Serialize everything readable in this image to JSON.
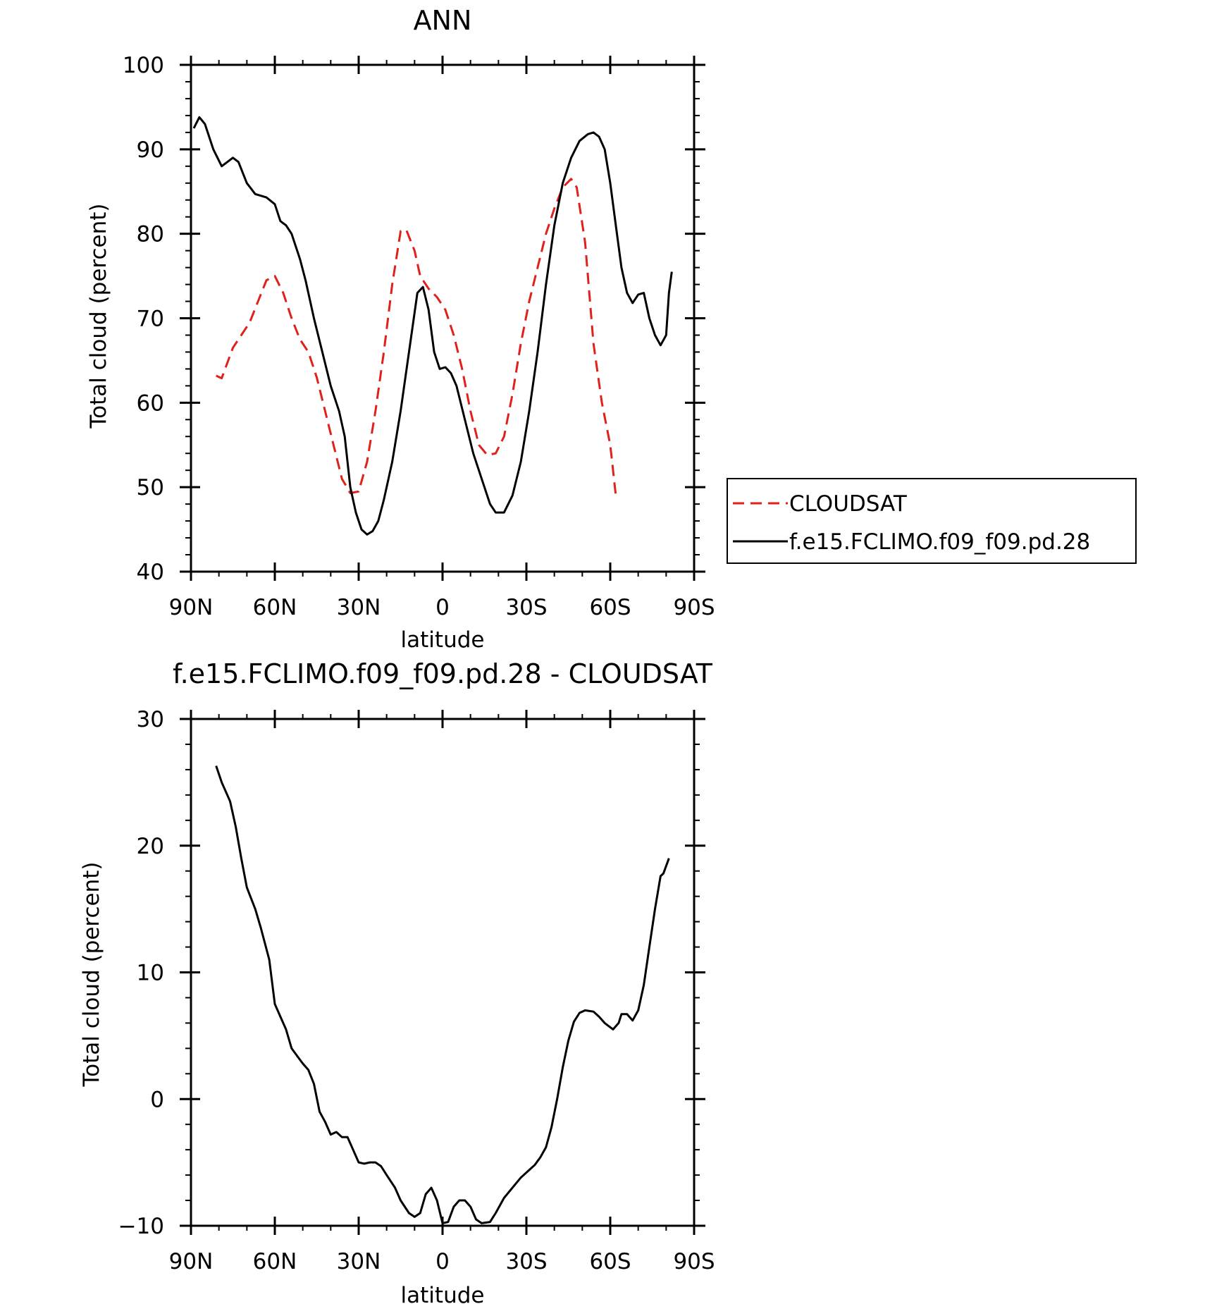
{
  "chart_data": [
    {
      "type": "line",
      "title": "ANN",
      "xlabel": "latitude",
      "ylabel": "Total cloud (percent)",
      "xlim": [
        90,
        -90
      ],
      "ylim": [
        40,
        100
      ],
      "x_ticks": [
        90,
        60,
        30,
        0,
        -30,
        -60,
        -90
      ],
      "x_tick_labels": [
        "90N",
        "60N",
        "30N",
        "0",
        "30S",
        "60S",
        "90S"
      ],
      "y_ticks": [
        40,
        50,
        60,
        70,
        80,
        90,
        100
      ],
      "y_tick_labels": [
        "40",
        "50",
        "60",
        "70",
        "80",
        "90",
        "100"
      ],
      "grid": false,
      "legend_position": "right",
      "series": [
        {
          "name": "CLOUDSAT",
          "color": "#e0201b",
          "dash": "dashed",
          "points": [
            [
              81,
              63.2
            ],
            [
              79,
              62.9
            ],
            [
              75,
              66.5
            ],
            [
              72,
              68
            ],
            [
              69,
              69.5
            ],
            [
              66,
              72
            ],
            [
              63,
              74.5
            ],
            [
              60,
              75
            ],
            [
              57,
              73
            ],
            [
              54,
              70
            ],
            [
              51,
              67.5
            ],
            [
              48,
              66
            ],
            [
              45,
              63
            ],
            [
              42,
              59
            ],
            [
              39,
              55
            ],
            [
              36,
              51
            ],
            [
              33,
              49.3
            ],
            [
              30,
              49.5
            ],
            [
              27,
              53
            ],
            [
              24,
              59
            ],
            [
              21,
              66
            ],
            [
              18,
              74
            ],
            [
              15,
              80.3
            ],
            [
              13,
              80.5
            ],
            [
              10,
              78
            ],
            [
              8,
              75
            ],
            [
              5,
              73.5
            ],
            [
              2,
              72.5
            ],
            [
              -1,
              71
            ],
            [
              -4,
              68
            ],
            [
              -7,
              64
            ],
            [
              -10,
              59
            ],
            [
              -13,
              55
            ],
            [
              -16,
              53.8
            ],
            [
              -19,
              54
            ],
            [
              -22,
              56
            ],
            [
              -25,
              61
            ],
            [
              -28,
              67
            ],
            [
              -31,
              72
            ],
            [
              -34,
              76
            ],
            [
              -37,
              80
            ],
            [
              -40,
              83
            ],
            [
              -43,
              85.5
            ],
            [
              -46,
              86.5
            ],
            [
              -48,
              85.5
            ],
            [
              -51,
              79
            ],
            [
              -54,
              67
            ],
            [
              -57,
              60
            ],
            [
              -60,
              55
            ],
            [
              -62,
              49
            ]
          ]
        },
        {
          "name": "f.e15.FCLIMO.f09_f09.pd.28",
          "color": "#000000",
          "dash": "solid",
          "points": [
            [
              89,
              92.5
            ],
            [
              87,
              93.8
            ],
            [
              85,
              93
            ],
            [
              82,
              90
            ],
            [
              79,
              88
            ],
            [
              77,
              88.5
            ],
            [
              75,
              89
            ],
            [
              73,
              88.5
            ],
            [
              70,
              86
            ],
            [
              67,
              84.7
            ],
            [
              63,
              84.3
            ],
            [
              60,
              83.5
            ],
            [
              58,
              81.5
            ],
            [
              56,
              81
            ],
            [
              54,
              80
            ],
            [
              51,
              77
            ],
            [
              49,
              74.5
            ],
            [
              46,
              70
            ],
            [
              43,
              66
            ],
            [
              40,
              62
            ],
            [
              37,
              59
            ],
            [
              35,
              56
            ],
            [
              33,
              50
            ],
            [
              31,
              47
            ],
            [
              29,
              45
            ],
            [
              27,
              44.4
            ],
            [
              25,
              44.8
            ],
            [
              23,
              46
            ],
            [
              21,
              48.5
            ],
            [
              18,
              53
            ],
            [
              15,
              59
            ],
            [
              12,
              66
            ],
            [
              9,
              73
            ],
            [
              7,
              73.7
            ],
            [
              5,
              71
            ],
            [
              3,
              66
            ],
            [
              1,
              64
            ],
            [
              -1,
              64.2
            ],
            [
              -3,
              63.5
            ],
            [
              -5,
              62
            ],
            [
              -8,
              58
            ],
            [
              -11,
              54
            ],
            [
              -14,
              51
            ],
            [
              -17,
              48
            ],
            [
              -19,
              47
            ],
            [
              -22,
              47
            ],
            [
              -25,
              49
            ],
            [
              -28,
              53
            ],
            [
              -31,
              59
            ],
            [
              -34,
              66
            ],
            [
              -37,
              74
            ],
            [
              -40,
              81
            ],
            [
              -43,
              86
            ],
            [
              -46,
              89
            ],
            [
              -49,
              91
            ],
            [
              -52,
              91.8
            ],
            [
              -54,
              92
            ],
            [
              -56,
              91.5
            ],
            [
              -58,
              90
            ],
            [
              -60,
              86
            ],
            [
              -62,
              81
            ],
            [
              -64,
              76
            ],
            [
              -66,
              73
            ],
            [
              -68,
              71.8
            ],
            [
              -70,
              72.8
            ],
            [
              -72,
              73
            ],
            [
              -74,
              70
            ],
            [
              -76,
              68
            ],
            [
              -78,
              66.8
            ],
            [
              -80,
              68
            ],
            [
              -81,
              73
            ],
            [
              -82,
              75.5
            ]
          ]
        }
      ]
    },
    {
      "type": "line",
      "title": "f.e15.FCLIMO.f09_f09.pd.28 - CLOUDSAT",
      "xlabel": "latitude",
      "ylabel": "Total cloud (percent)",
      "xlim": [
        90,
        -90
      ],
      "ylim": [
        -10,
        30
      ],
      "x_ticks": [
        90,
        60,
        30,
        0,
        -30,
        -60,
        -90
      ],
      "x_tick_labels": [
        "90N",
        "60N",
        "30N",
        "0",
        "30S",
        "60S",
        "90S"
      ],
      "y_ticks": [
        -10,
        0,
        10,
        20,
        30
      ],
      "y_tick_labels": [
        "−10",
        "0",
        "10",
        "20",
        "30"
      ],
      "grid": false,
      "series": [
        {
          "color": "#000000",
          "dash": "solid",
          "points": [
            [
              81,
              26.3
            ],
            [
              79,
              25
            ],
            [
              76,
              23.5
            ],
            [
              74,
              21.5
            ],
            [
              72,
              19
            ],
            [
              70,
              16.7
            ],
            [
              67,
              15
            ],
            [
              65,
              13.5
            ],
            [
              62,
              11
            ],
            [
              60,
              7.5
            ],
            [
              58,
              6.5
            ],
            [
              56,
              5.5
            ],
            [
              54,
              4
            ],
            [
              52,
              3.4
            ],
            [
              50,
              2.8
            ],
            [
              48,
              2.3
            ],
            [
              46,
              1.2
            ],
            [
              44,
              -1
            ],
            [
              42,
              -1.8
            ],
            [
              40,
              -2.8
            ],
            [
              38,
              -2.6
            ],
            [
              36,
              -3
            ],
            [
              34,
              -3
            ],
            [
              32,
              -4
            ],
            [
              30,
              -5
            ],
            [
              28,
              -5.1
            ],
            [
              26,
              -5
            ],
            [
              24,
              -5
            ],
            [
              22,
              -5.3
            ],
            [
              20,
              -6
            ],
            [
              17,
              -7
            ],
            [
              15,
              -8
            ],
            [
              12,
              -9
            ],
            [
              10,
              -9.3
            ],
            [
              8,
              -9
            ],
            [
              6,
              -7.5
            ],
            [
              4,
              -7
            ],
            [
              2,
              -8
            ],
            [
              0,
              -9.8
            ],
            [
              -2,
              -9.7
            ],
            [
              -4,
              -8.5
            ],
            [
              -6,
              -8
            ],
            [
              -8,
              -8
            ],
            [
              -10,
              -8.5
            ],
            [
              -12,
              -9.5
            ],
            [
              -14,
              -9.8
            ],
            [
              -17,
              -9.7
            ],
            [
              -19,
              -9
            ],
            [
              -22,
              -7.8
            ],
            [
              -25,
              -7
            ],
            [
              -28,
              -6.2
            ],
            [
              -31,
              -5.6
            ],
            [
              -33,
              -5.2
            ],
            [
              -35,
              -4.6
            ],
            [
              -37,
              -3.8
            ],
            [
              -39,
              -2.2
            ],
            [
              -41,
              0
            ],
            [
              -43,
              2.5
            ],
            [
              -45,
              4.6
            ],
            [
              -47,
              6.1
            ],
            [
              -49,
              6.8
            ],
            [
              -51,
              7
            ],
            [
              -54,
              6.9
            ],
            [
              -56,
              6.5
            ],
            [
              -58,
              6
            ],
            [
              -61,
              5.5
            ],
            [
              -63,
              6
            ],
            [
              -64,
              6.7
            ],
            [
              -66,
              6.7
            ],
            [
              -68,
              6.2
            ],
            [
              -70,
              7
            ],
            [
              -72,
              9
            ],
            [
              -74,
              12
            ],
            [
              -76,
              15
            ],
            [
              -78,
              17.6
            ],
            [
              -79,
              17.8
            ],
            [
              -81,
              19
            ]
          ]
        }
      ]
    }
  ]
}
